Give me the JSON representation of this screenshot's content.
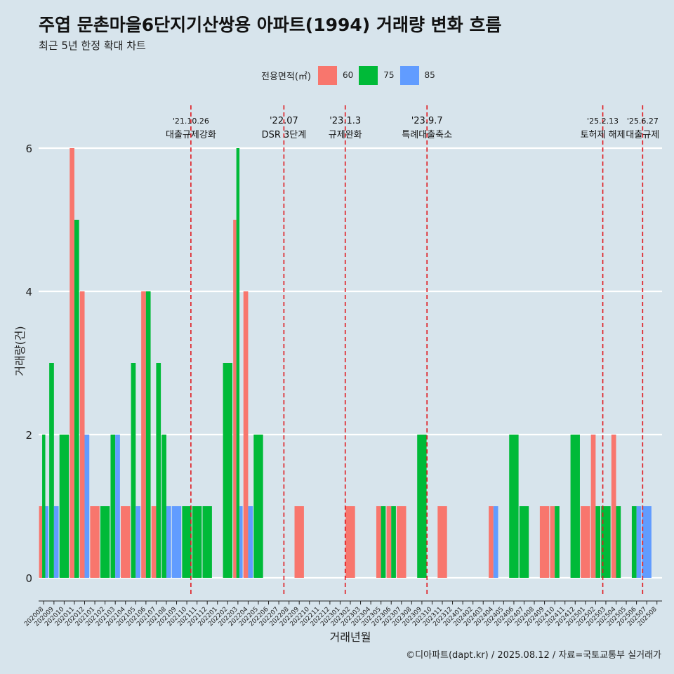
{
  "title": "주엽 문촌마을6단지기산쌍용 아파트(1994) 거래량 변화 흐름",
  "subtitle": "최근 5년 한정 확대 차트",
  "legend": {
    "title": "전용면적(㎡)",
    "items": [
      {
        "label": "60",
        "color": "#f8766d"
      },
      {
        "label": "75",
        "color": "#00ba38"
      },
      {
        "label": "85",
        "color": "#619cff"
      }
    ]
  },
  "footer": "©디아파트(dapt.kr) / 2025.08.12 / 자료=국토교통부 실거래가",
  "chart_data": {
    "type": "bar",
    "xlabel": "거래년월",
    "ylabel": "거래량(건)",
    "ylim": [
      0,
      6
    ],
    "yticks": [
      0,
      2,
      4,
      6
    ],
    "grid": true,
    "categories": [
      "202008",
      "202009",
      "202010",
      "202011",
      "202012",
      "202101",
      "202102",
      "202103",
      "202104",
      "202105",
      "202106",
      "202107",
      "202108",
      "202109",
      "202110",
      "202111",
      "202112",
      "202201",
      "202202",
      "202203",
      "202204",
      "202205",
      "202206",
      "202207",
      "202208",
      "202209",
      "202210",
      "202211",
      "202212",
      "202301",
      "202302",
      "202303",
      "202304",
      "202305",
      "202306",
      "202307",
      "202308",
      "202309",
      "202310",
      "202311",
      "202312",
      "202401",
      "202402",
      "202403",
      "202404",
      "202405",
      "202406",
      "202407",
      "202408",
      "202409",
      "202410",
      "202411",
      "202412",
      "202501",
      "202502",
      "202503",
      "202504",
      "202505",
      "202506",
      "202507",
      "202508"
    ],
    "series": [
      {
        "name": "60",
        "color": "#f8766d",
        "values": [
          1,
          0,
          0,
          6,
          4,
          1,
          0,
          0,
          1,
          0,
          4,
          1,
          0,
          0,
          0,
          0,
          0,
          0,
          0,
          5,
          4,
          0,
          0,
          0,
          0,
          1,
          0,
          0,
          0,
          0,
          1,
          0,
          0,
          1,
          1,
          1,
          0,
          0,
          0,
          1,
          0,
          0,
          0,
          0,
          1,
          0,
          0,
          0,
          0,
          1,
          1,
          0,
          0,
          1,
          2,
          0,
          2,
          0,
          0,
          0,
          0
        ]
      },
      {
        "name": "75",
        "color": "#00ba38",
        "values": [
          2,
          3,
          2,
          5,
          0,
          0,
          1,
          2,
          0,
          3,
          4,
          3,
          2,
          0,
          1,
          1,
          1,
          0,
          3,
          6,
          0,
          2,
          0,
          0,
          0,
          0,
          0,
          0,
          0,
          0,
          0,
          0,
          0,
          1,
          1,
          0,
          0,
          2,
          0,
          0,
          0,
          0,
          0,
          0,
          0,
          0,
          2,
          1,
          0,
          0,
          1,
          0,
          2,
          0,
          1,
          1,
          1,
          0,
          1,
          0,
          0
        ]
      },
      {
        "name": "85",
        "color": "#619cff",
        "values": [
          1,
          1,
          0,
          0,
          2,
          0,
          0,
          2,
          0,
          1,
          0,
          0,
          1,
          1,
          0,
          0,
          0,
          0,
          0,
          1,
          1,
          0,
          0,
          0,
          0,
          0,
          0,
          0,
          0,
          0,
          0,
          0,
          0,
          0,
          0,
          0,
          0,
          0,
          0,
          0,
          0,
          0,
          0,
          0,
          1,
          0,
          0,
          0,
          0,
          0,
          0,
          0,
          0,
          0,
          0,
          0,
          0,
          0,
          1,
          1,
          0
        ]
      }
    ],
    "events": [
      {
        "date": "'21.10.26",
        "label": "대출규제강화",
        "position": 14.4
      },
      {
        "date": "'22.07",
        "label": "DSR 3단계",
        "position": 23.5
      },
      {
        "date": "'23.1.3",
        "label": "규제완화",
        "position": 29.5
      },
      {
        "date": "'23.9.7",
        "label": "특례대출축소",
        "position": 37.5
      },
      {
        "date": "'25.2.13",
        "label": "토허제 해제",
        "position": 54.7
      },
      {
        "date": "'25.6.27",
        "label": "대출규제",
        "position": 58.6
      }
    ]
  }
}
